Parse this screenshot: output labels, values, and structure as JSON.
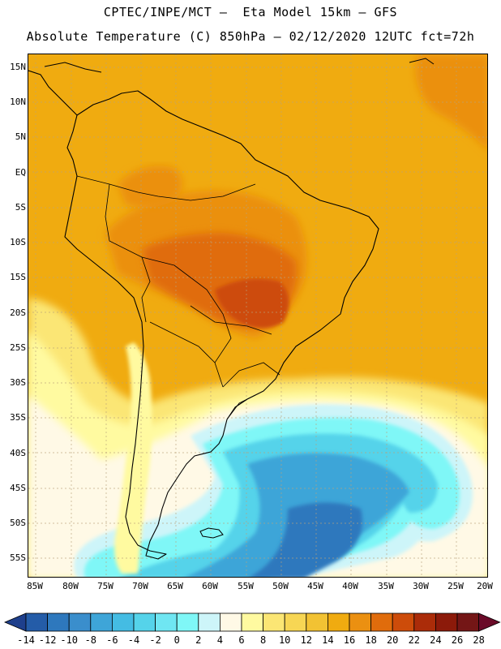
{
  "title": {
    "line1": "CPTEC/INPE/MCT –  Eta Model 15km – GFS",
    "line2": "Absolute Temperature (C) 850hPa – 02/12/2020 12UTC fct=72h"
  },
  "map": {
    "lat_labels": [
      "15N",
      "10N",
      "5N",
      "EQ",
      "5S",
      "10S",
      "15S",
      "20S",
      "25S",
      "30S",
      "35S",
      "40S",
      "45S",
      "50S",
      "55S"
    ],
    "lon_labels": [
      "85W",
      "80W",
      "75W",
      "70W",
      "65W",
      "60W",
      "55W",
      "50W",
      "45W",
      "40W",
      "35W",
      "30W",
      "25W",
      "20W"
    ],
    "background_color": "#f0ab10"
  },
  "colorbar": {
    "labels": [
      "-14",
      "-12",
      "-10",
      "-8",
      "-6",
      "-4",
      "-2",
      "0",
      "2",
      "4",
      "6",
      "8",
      "10",
      "12",
      "14",
      "16",
      "18",
      "20",
      "22",
      "24",
      "26",
      "28"
    ],
    "colors": [
      "#1e3f8c",
      "#245ca8",
      "#2e78bd",
      "#3a8ecc",
      "#3ea5d8",
      "#44bce3",
      "#55d3ea",
      "#6fe6f2",
      "#7ff7f7",
      "#cdf5f9",
      "#fff9e6",
      "#fffaa0",
      "#fbe674",
      "#f7d654",
      "#f2c233",
      "#f0ab10",
      "#eb9011",
      "#e06c0c",
      "#cd4c0a",
      "#ab2c09",
      "#8c1a0a",
      "#741616",
      "#6a0a28"
    ]
  }
}
